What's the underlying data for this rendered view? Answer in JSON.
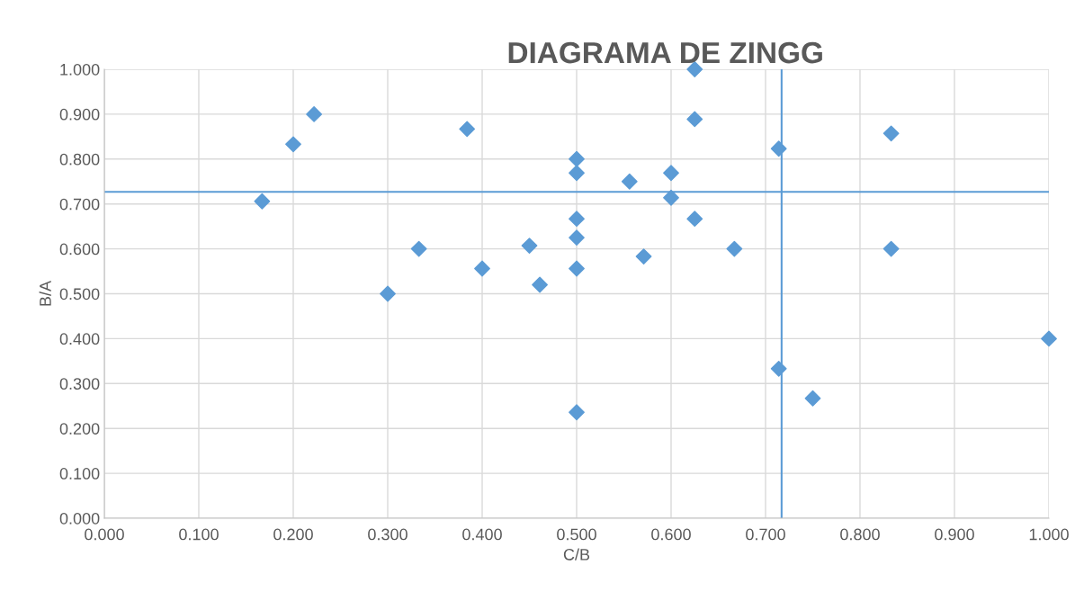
{
  "chart_data": {
    "type": "scatter",
    "title": "DIAGRAMA DE ZINGG",
    "xlabel": "C/B",
    "ylabel": "B/A",
    "x": [
      0.167,
      0.2,
      0.222,
      0.3,
      0.333,
      0.384,
      0.4,
      0.45,
      0.461,
      0.5,
      0.5,
      0.5,
      0.5,
      0.5,
      0.5,
      0.556,
      0.571,
      0.6,
      0.6,
      0.625,
      0.625,
      0.625,
      0.667,
      0.714,
      0.714,
      0.75,
      0.833,
      0.833,
      1.0
    ],
    "series": [
      {
        "color": "#5b9bd5",
        "values": [
          0.706,
          0.833,
          0.9,
          0.5,
          0.6,
          0.867,
          0.556,
          0.607,
          0.52,
          0.8,
          0.769,
          0.667,
          0.625,
          0.556,
          0.236,
          0.75,
          0.583,
          0.769,
          0.714,
          1.0,
          0.889,
          0.667,
          0.6,
          0.823,
          0.333,
          0.267,
          0.857,
          0.6,
          0.4
        ]
      }
    ],
    "marker": "diamond",
    "grid": true,
    "xlim": [
      0,
      1
    ],
    "ylim": [
      0,
      1
    ],
    "xticks": [
      {
        "value": 0,
        "label": "0.000"
      },
      {
        "value": 0.1,
        "label": "0.100"
      },
      {
        "value": 0.2,
        "label": "0.200"
      },
      {
        "value": 0.3,
        "label": "0.300"
      },
      {
        "value": 0.4,
        "label": "0.400"
      },
      {
        "value": 0.5,
        "label": "0.500"
      },
      {
        "value": 0.6,
        "label": "0.600"
      },
      {
        "value": 0.7,
        "label": "0.700"
      },
      {
        "value": 0.8,
        "label": "0.800"
      },
      {
        "value": 0.9,
        "label": "0.900"
      },
      {
        "value": 1,
        "label": "1.000"
      }
    ],
    "yticks": [
      {
        "value": 0,
        "label": "0.000"
      },
      {
        "value": 0.1,
        "label": "0.100"
      },
      {
        "value": 0.2,
        "label": "0.200"
      },
      {
        "value": 0.3,
        "label": "0.300"
      },
      {
        "value": 0.4,
        "label": "0.400"
      },
      {
        "value": 0.5,
        "label": "0.500"
      },
      {
        "value": 0.6,
        "label": "0.600"
      },
      {
        "value": 0.7,
        "label": "0.700"
      },
      {
        "value": 0.8,
        "label": "0.800"
      },
      {
        "value": 0.9,
        "label": "0.900"
      },
      {
        "value": 1,
        "label": "1.000"
      }
    ],
    "ref_lines": [
      {
        "axis": "y",
        "value": 0.727,
        "color": "#5b9bd5"
      },
      {
        "axis": "x",
        "value": 0.717,
        "color": "#5b9bd5"
      }
    ]
  }
}
